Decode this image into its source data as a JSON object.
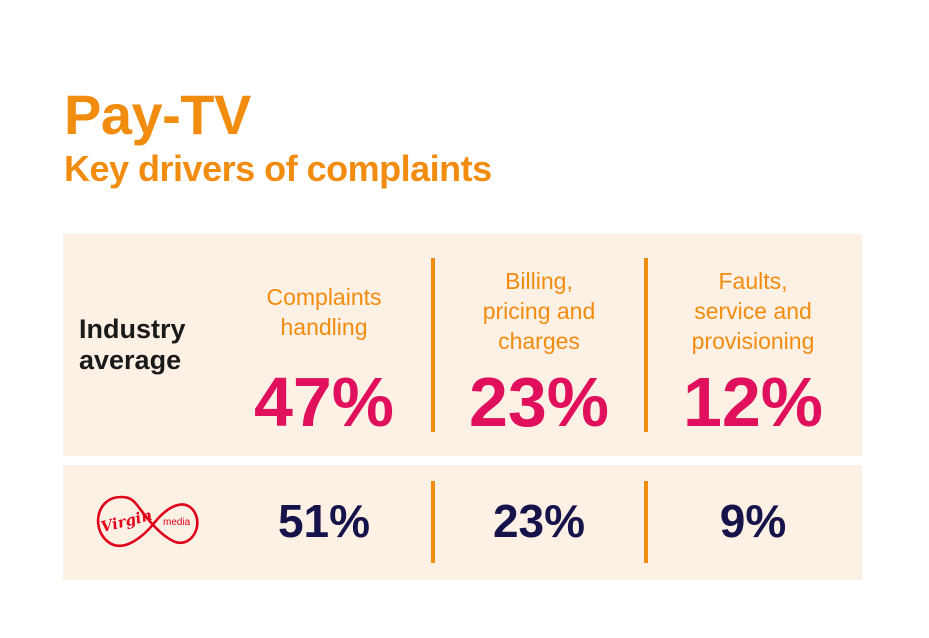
{
  "header": {
    "title": "Pay-TV",
    "subtitle": "Key drivers of complaints"
  },
  "industry": {
    "label": "Industry average",
    "columns": [
      {
        "category_lines": [
          "Complaints",
          "handling"
        ],
        "value": "47%"
      },
      {
        "category_lines": [
          "Billing,",
          "pricing and",
          "charges"
        ],
        "value": "23%"
      },
      {
        "category_lines": [
          "Faults,",
          "service and",
          "provisioning"
        ],
        "value": "12%"
      }
    ]
  },
  "provider": {
    "logo": {
      "name": "virgin-media-logo",
      "script_text": "Virgin",
      "sub_text": "media",
      "color": "#e1001a"
    },
    "values": [
      "51%",
      "23%",
      "9%"
    ]
  },
  "colors": {
    "accent_orange": "#f28c0f",
    "industry_value": "#e0105c",
    "provider_value": "#15134a",
    "panel_bg": "#fdf0e4"
  }
}
